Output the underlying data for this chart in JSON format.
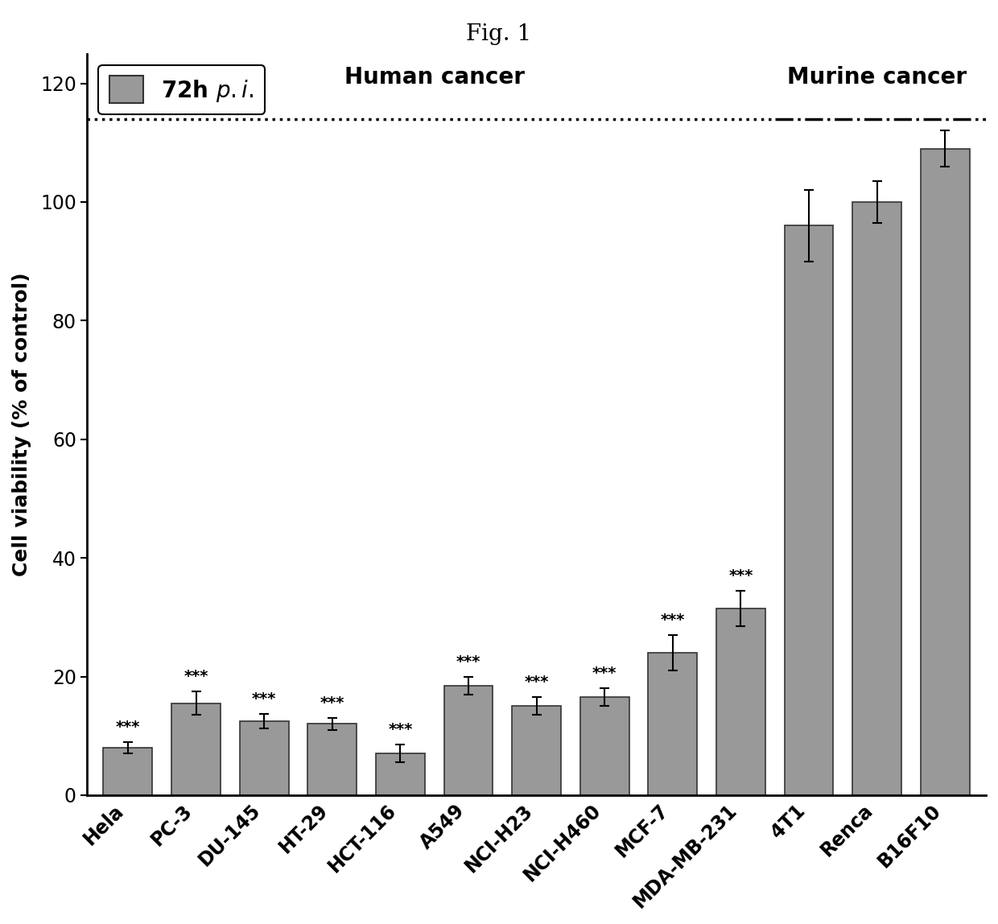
{
  "title": "Fig. 1",
  "categories": [
    "Hela",
    "PC-3",
    "DU-145",
    "HT-29",
    "HCT-116",
    "A549",
    "NCI-H23",
    "NCI-H460",
    "MCF-7",
    "MDA-MB-231",
    "4T1",
    "Renca",
    "B16F10"
  ],
  "values": [
    8.0,
    15.5,
    12.5,
    12.0,
    7.0,
    18.5,
    15.0,
    16.5,
    24.0,
    31.5,
    96.0,
    100.0,
    109.0
  ],
  "errors": [
    1.0,
    2.0,
    1.2,
    1.0,
    1.5,
    1.5,
    1.5,
    1.5,
    3.0,
    3.0,
    6.0,
    3.5,
    3.0
  ],
  "bar_color": "#999999",
  "bar_edgecolor": "#333333",
  "significance": [
    "***",
    "***",
    "***",
    "***",
    "***",
    "***",
    "***",
    "***",
    "***",
    "***",
    "",
    "",
    ""
  ],
  "ylabel": "Cell viability (% of control)",
  "ylim": [
    0,
    125
  ],
  "yticks": [
    0,
    20,
    40,
    60,
    80,
    100,
    120
  ],
  "dotted_line_y": 114,
  "human_cancer_label": "Human cancer",
  "murine_cancer_label": "Murine cancer",
  "legend_label": "72h p.i.",
  "background_color": "#ffffff",
  "title_fontsize": 20,
  "axis_fontsize": 18,
  "tick_fontsize": 17,
  "sig_fontsize": 14,
  "annotation_fontsize": 20
}
